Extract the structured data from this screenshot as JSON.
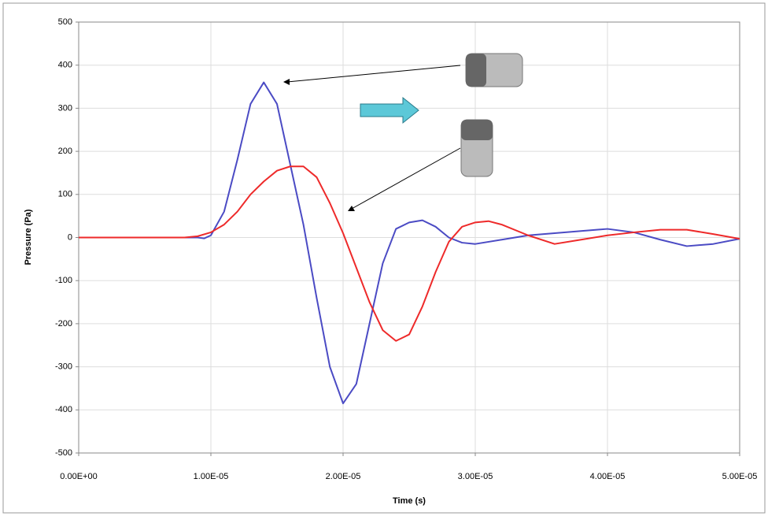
{
  "chart_data": {
    "type": "line",
    "xlabel": "Time (s)",
    "ylabel": "Pressure (Pa)",
    "xlim": [
      0,
      5e-05
    ],
    "ylim": [
      -500,
      500
    ],
    "xticks": [
      {
        "value": 0,
        "label": "0.00E+00"
      },
      {
        "value": 1e-05,
        "label": "1.00E-05"
      },
      {
        "value": 2e-05,
        "label": "2.00E-05"
      },
      {
        "value": 3e-05,
        "label": "3.00E-05"
      },
      {
        "value": 4e-05,
        "label": "4.00E-05"
      },
      {
        "value": 5e-05,
        "label": "5.00E-05"
      }
    ],
    "yticks": [
      -500,
      -400,
      -300,
      -200,
      -100,
      0,
      100,
      200,
      300,
      400,
      500
    ],
    "grid": true,
    "series": [
      {
        "color": "#4b4bc4",
        "x": [
          0,
          5e-06,
          9e-06,
          9.5e-06,
          1e-05,
          1.1e-05,
          1.2e-05,
          1.3e-05,
          1.4e-05,
          1.5e-05,
          1.6e-05,
          1.7e-05,
          1.8e-05,
          1.9e-05,
          2e-05,
          2.1e-05,
          2.2e-05,
          2.3e-05,
          2.4e-05,
          2.5e-05,
          2.6e-05,
          2.7e-05,
          2.8e-05,
          2.9e-05,
          3e-05,
          3.2e-05,
          3.4e-05,
          3.6e-05,
          3.8e-05,
          4e-05,
          4.2e-05,
          4.4e-05,
          4.6e-05,
          4.8e-05,
          5e-05
        ],
        "values": [
          0,
          0,
          0,
          -2,
          5,
          60,
          180,
          310,
          360,
          310,
          170,
          30,
          -140,
          -300,
          -385,
          -340,
          -200,
          -60,
          20,
          35,
          40,
          25,
          0,
          -12,
          -15,
          -5,
          5,
          10,
          15,
          20,
          12,
          -5,
          -20,
          -15,
          -3
        ]
      },
      {
        "color": "#ee2a2a",
        "x": [
          0,
          5e-06,
          8e-06,
          9e-06,
          1e-05,
          1.1e-05,
          1.2e-05,
          1.3e-05,
          1.4e-05,
          1.5e-05,
          1.6e-05,
          1.7e-05,
          1.8e-05,
          1.9e-05,
          2e-05,
          2.1e-05,
          2.2e-05,
          2.3e-05,
          2.4e-05,
          2.5e-05,
          2.6e-05,
          2.7e-05,
          2.8e-05,
          2.9e-05,
          3e-05,
          3.1e-05,
          3.2e-05,
          3.4e-05,
          3.6e-05,
          3.8e-05,
          4e-05,
          4.2e-05,
          4.4e-05,
          4.6e-05,
          4.8e-05,
          5e-05
        ],
        "values": [
          0,
          0,
          0,
          3,
          12,
          30,
          60,
          100,
          130,
          155,
          165,
          165,
          140,
          80,
          10,
          -70,
          -150,
          -215,
          -240,
          -225,
          -160,
          -80,
          -10,
          25,
          35,
          38,
          30,
          5,
          -15,
          -5,
          5,
          12,
          18,
          18,
          8,
          -3
        ]
      }
    ]
  }
}
